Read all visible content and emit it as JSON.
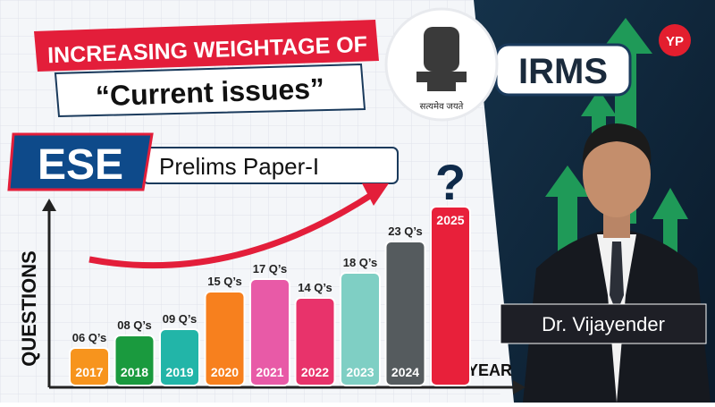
{
  "chart_data": {
    "type": "bar",
    "x_label": "YEAR",
    "y_label": "QUESTIONS",
    "categories": [
      "2017",
      "2018",
      "2019",
      "2020",
      "2021",
      "2022",
      "2023",
      "2024",
      "2025"
    ],
    "values": [
      6,
      8,
      9,
      15,
      17,
      14,
      18,
      23,
      null
    ],
    "value_labels": [
      "06 Q’s",
      "08 Q’s",
      "09 Q’s",
      "15 Q’s",
      "17 Q’s",
      "14 Q’s",
      "18 Q’s",
      "23 Q’s",
      null
    ],
    "colors": [
      "#f7941d",
      "#1a9a3e",
      "#22b5a8",
      "#f7801e",
      "#e85aa7",
      "#e8336b",
      "#7fcfc4",
      "#555b5e",
      "#e8203a"
    ],
    "unknown_mark": "?"
  },
  "thumbnail": {
    "headline": "INCREASING WEIGHTAGE OF",
    "topic": "“Current issues”",
    "exam": "ESE",
    "paper": "Prelims Paper-I",
    "motto": "सत्यमेव जयते",
    "service": "IRMS",
    "logo": "YP",
    "presenter": "Dr. Vijayender"
  }
}
